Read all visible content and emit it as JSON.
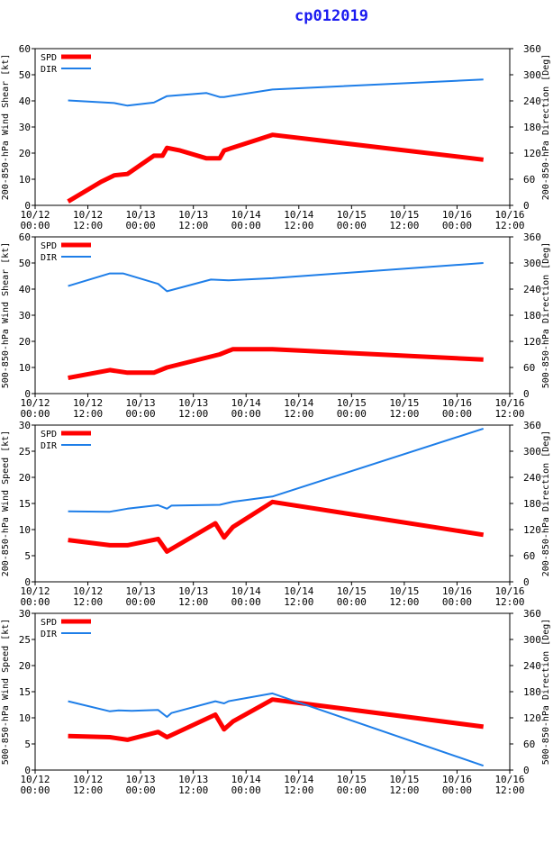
{
  "page": {
    "title": "cp012019"
  },
  "legend": {
    "spd": "SPD",
    "dir": "DIR"
  },
  "colors": {
    "spd": "#ff0000",
    "dir": "#1e7ee8",
    "title": "#1a1af0",
    "axis": "#000000"
  },
  "x_ticks": [
    [
      "10/12",
      "00:00"
    ],
    [
      "10/12",
      "12:00"
    ],
    [
      "10/13",
      "00:00"
    ],
    [
      "10/13",
      "12:00"
    ],
    [
      "10/14",
      "00:00"
    ],
    [
      "10/14",
      "12:00"
    ],
    [
      "10/15",
      "00:00"
    ],
    [
      "10/15",
      "12:00"
    ],
    [
      "10/16",
      "00:00"
    ],
    [
      "10/16",
      "12:00"
    ]
  ],
  "chart_data": [
    {
      "type": "line",
      "ylabel": "200-850-hPa Wind Shear [kt]",
      "y2label": "200-850-hPa Direction [Deg]",
      "xlim": [
        0,
        108
      ],
      "ylim": [
        0,
        60
      ],
      "y2lim": [
        0,
        360
      ],
      "yticks": [
        0,
        10,
        20,
        30,
        40,
        50,
        60
      ],
      "y2ticks": [
        0,
        60,
        120,
        180,
        240,
        300,
        360
      ],
      "series": [
        {
          "name": "SPD",
          "axis": "left",
          "x": [
            7.5,
            15,
            18,
            21,
            27,
            29,
            30,
            33,
            39,
            42,
            43,
            54,
            102
          ],
          "y": [
            1.5,
            9,
            11.5,
            12,
            19,
            19,
            22,
            21,
            18,
            18,
            21,
            27,
            17.5
          ]
        },
        {
          "name": "DIR",
          "axis": "right",
          "x": [
            7.5,
            18,
            21,
            27,
            30,
            39,
            42,
            43,
            54,
            102
          ],
          "y": [
            241,
            235,
            229,
            236,
            251,
            258,
            249,
            249,
            266,
            289
          ]
        }
      ]
    },
    {
      "type": "line",
      "ylabel": "500-850-hPa Wind Shear [kt]",
      "y2label": "500-850-hPa Direction [Deg]",
      "xlim": [
        0,
        108
      ],
      "ylim": [
        0,
        60
      ],
      "y2lim": [
        0,
        360
      ],
      "yticks": [
        0,
        10,
        20,
        30,
        40,
        50,
        60
      ],
      "y2ticks": [
        0,
        60,
        120,
        180,
        240,
        300,
        360
      ],
      "series": [
        {
          "name": "SPD",
          "axis": "left",
          "x": [
            7.5,
            17,
            21,
            27,
            30,
            42,
            45,
            54,
            102
          ],
          "y": [
            6,
            9,
            8,
            8,
            10,
            15,
            17,
            17,
            13
          ]
        },
        {
          "name": "DIR",
          "axis": "right",
          "x": [
            7.5,
            17,
            20,
            28,
            30,
            40,
            44,
            54,
            102
          ],
          "y": [
            247,
            276,
            276,
            252,
            235,
            262,
            260,
            265,
            300
          ]
        }
      ]
    },
    {
      "type": "line",
      "ylabel": "200-850-hPa Wind Speed [kt]",
      "y2label": "200-850-hPa Direction [Deg]",
      "xlim": [
        0,
        108
      ],
      "ylim": [
        0,
        30
      ],
      "y2lim": [
        0,
        360
      ],
      "yticks": [
        0,
        5,
        10,
        15,
        20,
        25,
        30
      ],
      "y2ticks": [
        0,
        60,
        120,
        180,
        240,
        300,
        360
      ],
      "series": [
        {
          "name": "SPD",
          "axis": "left",
          "x": [
            7.5,
            17,
            21,
            28,
            30,
            41,
            43,
            45,
            54,
            102
          ],
          "y": [
            8,
            7,
            7,
            8.2,
            5.8,
            11.2,
            8.5,
            10.5,
            15.3,
            9
          ]
        },
        {
          "name": "DIR",
          "axis": "right",
          "x": [
            7.5,
            17,
            21,
            28,
            30,
            31,
            42,
            45,
            54,
            102
          ],
          "y": [
            162,
            161,
            168,
            176,
            168,
            175,
            177,
            184,
            196,
            352
          ]
        }
      ]
    },
    {
      "type": "line",
      "ylabel": "500-850-hPa Wind Speed [kt]",
      "y2label": "500-850-hPa Direction [Deg]",
      "xlim": [
        0,
        108
      ],
      "ylim": [
        0,
        30
      ],
      "y2lim": [
        0,
        360
      ],
      "yticks": [
        0,
        5,
        10,
        15,
        20,
        25,
        30
      ],
      "y2ticks": [
        0,
        60,
        120,
        180,
        240,
        300,
        360
      ],
      "series": [
        {
          "name": "SPD",
          "axis": "left",
          "x": [
            7.5,
            17,
            21,
            28,
            30,
            41,
            43,
            45,
            54,
            102
          ],
          "y": [
            6.5,
            6.3,
            5.8,
            7.3,
            6.3,
            10.6,
            7.8,
            9.3,
            13.5,
            8.3
          ]
        },
        {
          "name": "DIR",
          "axis": "right",
          "x": [
            7.5,
            17,
            19,
            22,
            28,
            30,
            31,
            41,
            43,
            44,
            54,
            102
          ],
          "y": [
            158,
            135,
            137,
            136,
            138,
            122,
            131,
            158,
            153,
            158,
            176,
            10
          ]
        }
      ]
    }
  ]
}
